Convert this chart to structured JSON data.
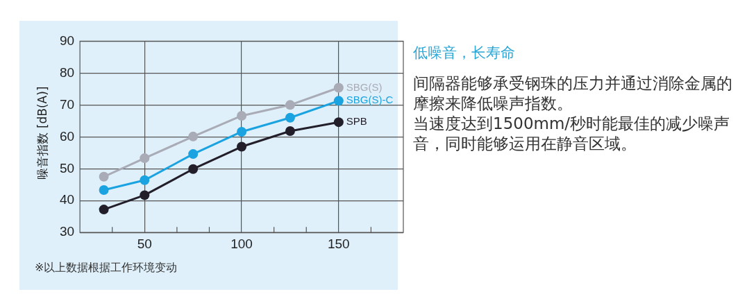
{
  "chart_data": {
    "type": "line",
    "title": "低噪音，长寿命",
    "subtitle": "间隔器能够承受钢珠的压力并通过消除金属的摩擦来降低噪声指数。",
    "ylabel": "噪音指数 [dB(A)]",
    "annotations": [
      "※以上数据根据工作环境变动",
      "当速度达到1500mm/秒时能最佳的减少噪声音，同时能够运用在静音区域。"
    ],
    "x": [
      29,
      50,
      75,
      100,
      125,
      150
    ],
    "series": [
      {
        "name": "SBG(S)",
        "color": "#a9abb6",
        "values": [
          47.5,
          53.3,
          60.1,
          66.6,
          70.0,
          75.4
        ]
      },
      {
        "name": "SBG(S)-C",
        "color": "#1aa3e0",
        "values": [
          43.3,
          46.4,
          54.6,
          61.6,
          66.0,
          71.3
        ]
      },
      {
        "name": "SPB",
        "color": "#231f2a",
        "values": [
          37.2,
          41.7,
          49.9,
          56.9,
          61.8,
          64.6
        ]
      }
    ],
    "xlim": [
      16.67,
      183.33
    ],
    "xticks": [
      {
        "value": 33.33,
        "label": null
      },
      50,
      {
        "value": 66.67,
        "label": null
      },
      {
        "value": 83.33,
        "label": null
      },
      100,
      {
        "value": 116.67,
        "label": null
      },
      {
        "value": 133.33,
        "label": null
      },
      150,
      {
        "value": 166.67,
        "label": null
      }
    ],
    "ylim": [
      30,
      90
    ],
    "yticks": [
      30,
      40,
      50,
      60,
      70,
      80,
      90
    ],
    "grid": true,
    "legend": false,
    "marker": "circle",
    "line_style": "solid"
  }
}
